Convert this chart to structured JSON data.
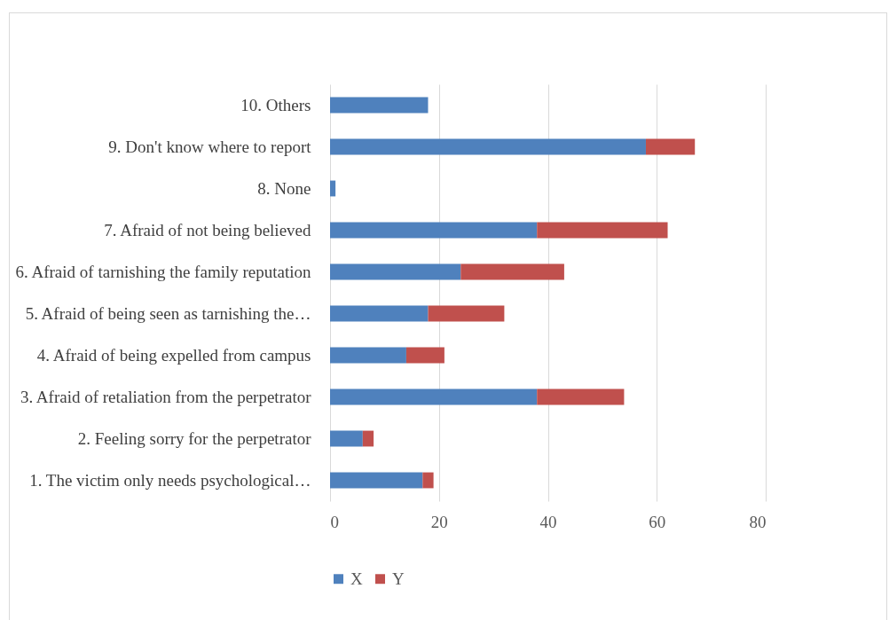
{
  "chart_data": {
    "type": "bar",
    "orientation": "horizontal",
    "stacked": true,
    "categories": [
      "10. Others",
      "9. Don't know where to report",
      "8. None",
      "7. Afraid of not being believed",
      "6. Afraid of tarnishing the family reputation",
      "5. Afraid of being seen as tarnishing the…",
      "4. Afraid of being expelled from campus",
      "3. Afraid of retaliation from the perpetrator",
      "2. Feeling sorry for the perpetrator",
      "1. The victim only needs psychological…"
    ],
    "series": [
      {
        "name": "X",
        "color": "#4f81bd",
        "values": [
          18,
          58,
          1,
          38,
          24,
          18,
          14,
          38,
          6,
          17
        ]
      },
      {
        "name": "Y",
        "color": "#c0504d",
        "values": [
          0,
          9,
          0,
          24,
          19,
          14,
          7,
          16,
          2,
          2
        ]
      }
    ],
    "xlim": [
      0,
      80
    ],
    "xticks": [
      0,
      20,
      40,
      60,
      80
    ],
    "grid": "x",
    "legend": "bottom"
  }
}
